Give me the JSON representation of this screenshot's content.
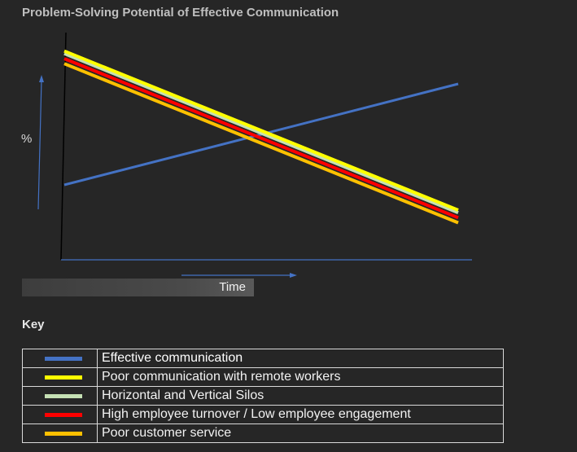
{
  "title": "Problem-Solving Potential of Effective Communication",
  "chart_data": {
    "type": "line",
    "title": "Problem-Solving Potential of Effective Communication",
    "xlabel": "Time",
    "ylabel": "%",
    "series": [
      {
        "name": "Effective communication",
        "color": "#4472c4",
        "start": 30,
        "end": 70
      },
      {
        "name": "Poor communication with remote workers",
        "color": "#ffff00",
        "start": 83,
        "end": 20
      },
      {
        "name": "Horizontal and Vertical Silos",
        "color": "#c5e0b4",
        "start": 82,
        "end": 19
      },
      {
        "name": "High employee turnover / Low employee engagement",
        "color": "#ff0000",
        "start": 80,
        "end": 17
      },
      {
        "name": "Poor customer service",
        "color": "#ffc000",
        "start": 78,
        "end": 15
      }
    ]
  },
  "key": {
    "title": "Key",
    "items": [
      {
        "label": "Effective communication",
        "color": "#4472c4"
      },
      {
        "label": "Poor communication with remote workers",
        "color": "#ffff00"
      },
      {
        "label": "Horizontal and Vertical Silos",
        "color": "#c5e0b4"
      },
      {
        "label": "High employee turnover / Low employee engagement",
        "color": "#ff0000"
      },
      {
        "label": "Poor customer service",
        "color": "#ffc000"
      }
    ]
  }
}
